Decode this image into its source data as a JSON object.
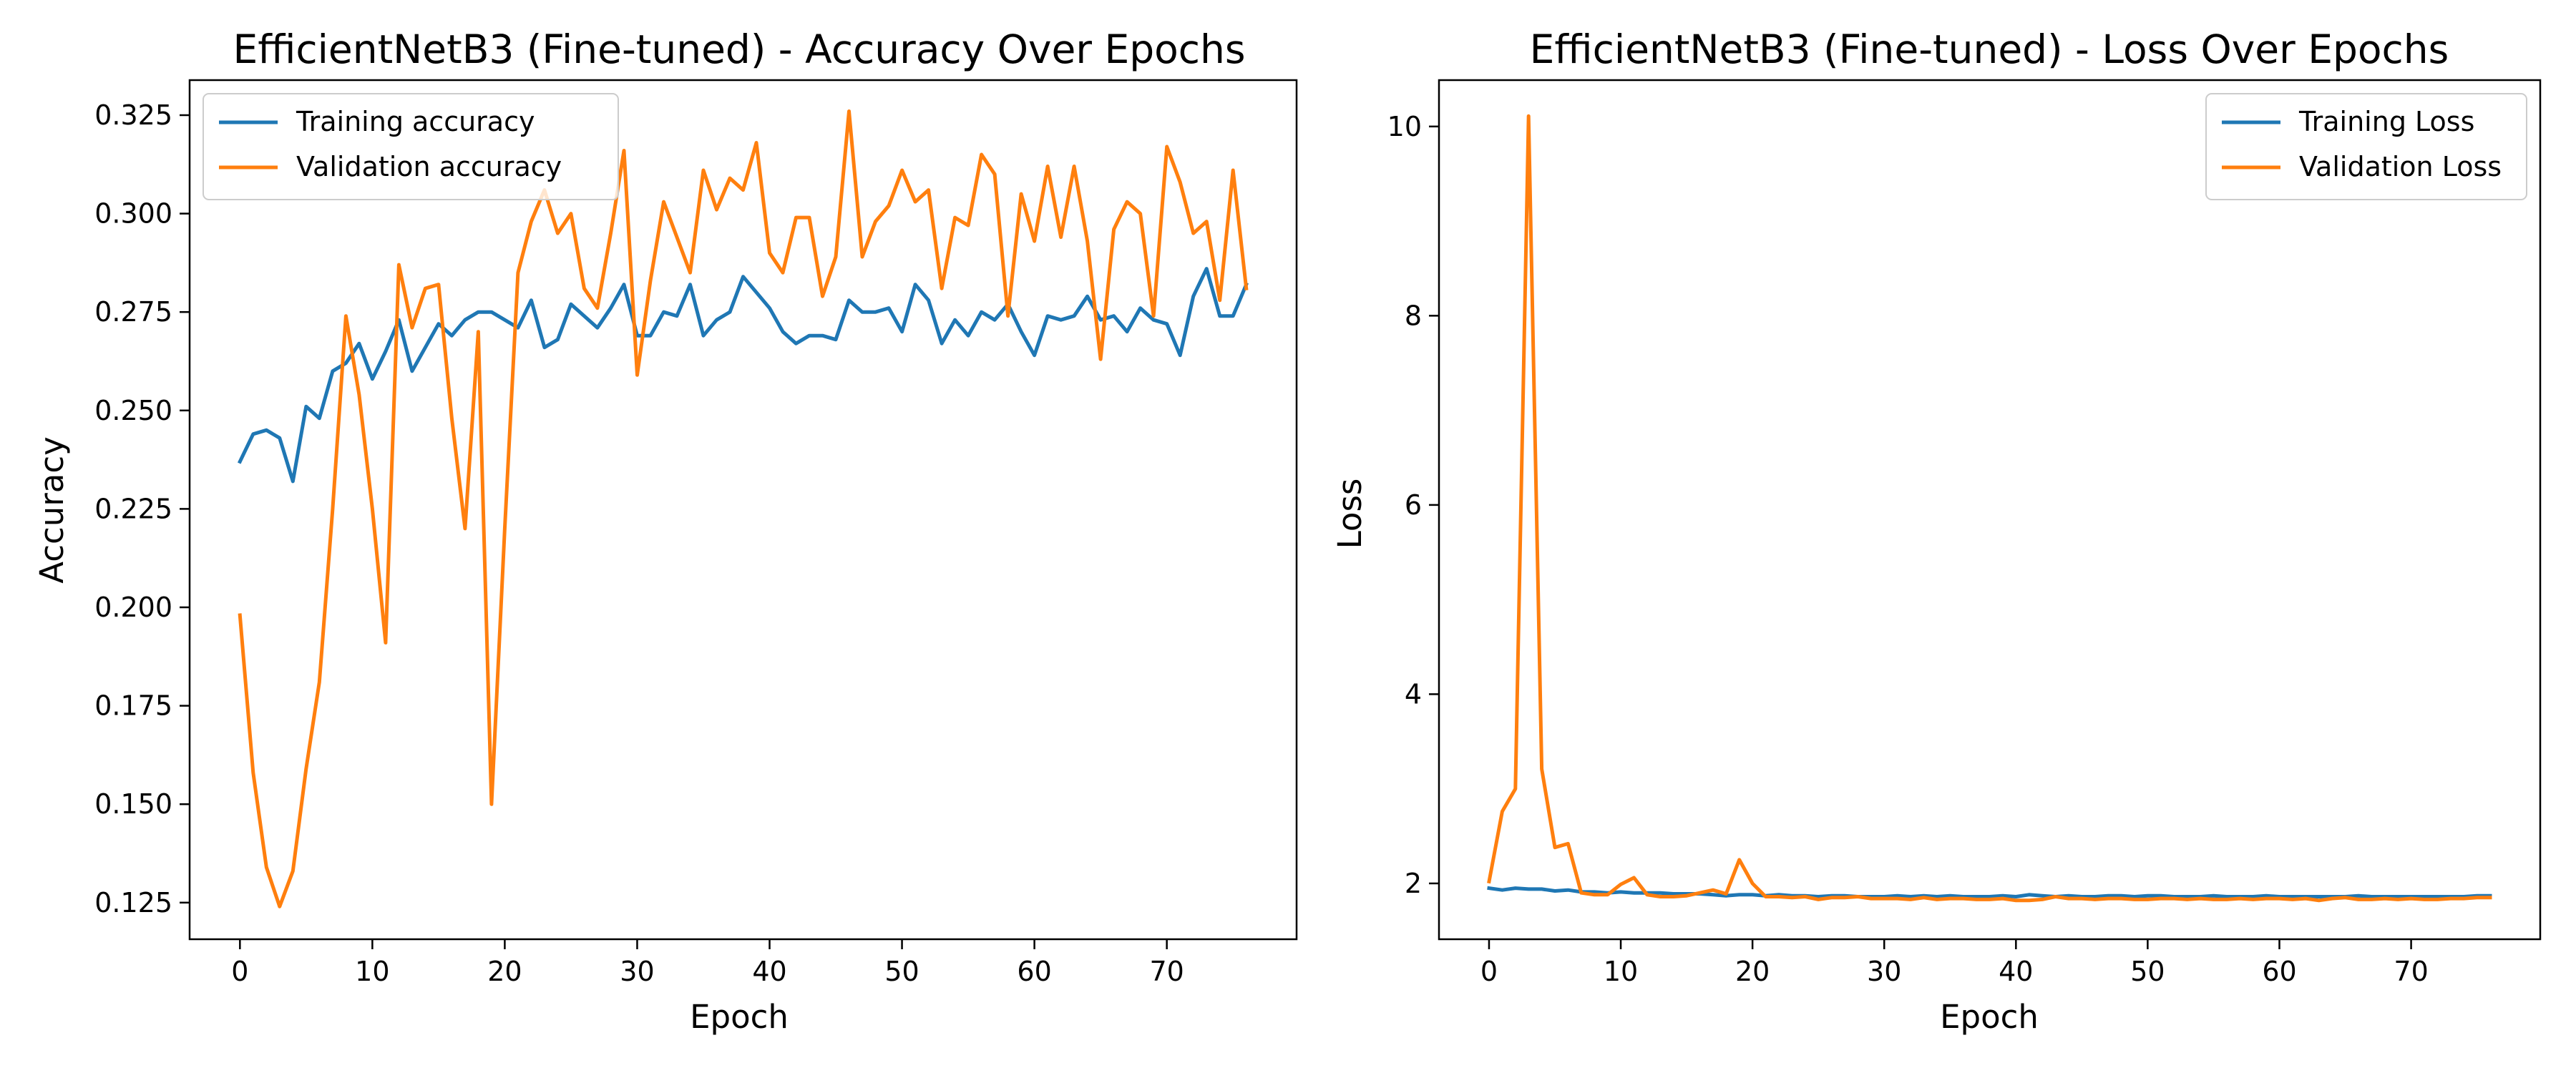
{
  "chart_data": [
    {
      "type": "line",
      "title": "EfficientNetB3 (Fine-tuned) - Accuracy Over Epochs",
      "xlabel": "Epoch",
      "ylabel": "Accuracy",
      "xlim": [
        -3.8,
        79.8
      ],
      "ylim": [
        0.1157,
        0.3339
      ],
      "xticks": [
        0,
        10,
        20,
        30,
        40,
        50,
        60,
        70
      ],
      "yticks": [
        0.125,
        0.15,
        0.175,
        0.2,
        0.225,
        0.25,
        0.275,
        0.3,
        0.325
      ],
      "ytick_labels": [
        "0.125",
        "0.150",
        "0.175",
        "0.200",
        "0.225",
        "0.250",
        "0.275",
        "0.300",
        "0.325"
      ],
      "grid": false,
      "legend": "top-left",
      "series": [
        {
          "name": "Training accuracy",
          "color": "#1f77b4",
          "x": [
            0,
            1,
            2,
            3,
            4,
            5,
            6,
            7,
            8,
            9,
            10,
            11,
            12,
            13,
            14,
            15,
            16,
            17,
            18,
            19,
            20,
            21,
            22,
            23,
            24,
            25,
            26,
            27,
            28,
            29,
            30,
            31,
            32,
            33,
            34,
            35,
            36,
            37,
            38,
            39,
            40,
            41,
            42,
            43,
            44,
            45,
            46,
            47,
            48,
            49,
            50,
            51,
            52,
            53,
            54,
            55,
            56,
            57,
            58,
            59,
            60,
            61,
            62,
            63,
            64,
            65,
            66,
            67,
            68,
            69,
            70,
            71,
            72,
            73,
            74,
            75,
            76
          ],
          "values": [
            0.237,
            0.244,
            0.245,
            0.243,
            0.232,
            0.251,
            0.248,
            0.26,
            0.262,
            0.267,
            0.258,
            0.265,
            0.273,
            0.26,
            0.266,
            0.272,
            0.269,
            0.273,
            0.275,
            0.275,
            0.273,
            0.271,
            0.278,
            0.266,
            0.268,
            0.277,
            0.274,
            0.271,
            0.276,
            0.282,
            0.269,
            0.269,
            0.275,
            0.274,
            0.282,
            0.269,
            0.273,
            0.275,
            0.284,
            0.28,
            0.276,
            0.27,
            0.267,
            0.269,
            0.269,
            0.268,
            0.278,
            0.275,
            0.275,
            0.276,
            0.27,
            0.282,
            0.278,
            0.267,
            0.273,
            0.269,
            0.275,
            0.273,
            0.277,
            0.27,
            0.264,
            0.274,
            0.273,
            0.274,
            0.279,
            0.273,
            0.274,
            0.27,
            0.276,
            0.273,
            0.272,
            0.264,
            0.279,
            0.286,
            0.274,
            0.274,
            0.282
          ]
        },
        {
          "name": "Validation accuracy",
          "color": "#ff7f0e",
          "x": [
            0,
            1,
            2,
            3,
            4,
            5,
            6,
            7,
            8,
            9,
            10,
            11,
            12,
            13,
            14,
            15,
            16,
            17,
            18,
            19,
            20,
            21,
            22,
            23,
            24,
            25,
            26,
            27,
            28,
            29,
            30,
            31,
            32,
            33,
            34,
            35,
            36,
            37,
            38,
            39,
            40,
            41,
            42,
            43,
            44,
            45,
            46,
            47,
            48,
            49,
            50,
            51,
            52,
            53,
            54,
            55,
            56,
            57,
            58,
            59,
            60,
            61,
            62,
            63,
            64,
            65,
            66,
            67,
            68,
            69,
            70,
            71,
            72,
            73,
            74,
            75,
            76
          ],
          "values": [
            0.198,
            0.158,
            0.134,
            0.124,
            0.133,
            0.159,
            0.181,
            0.225,
            0.274,
            0.254,
            0.225,
            0.191,
            0.287,
            0.271,
            0.281,
            0.282,
            0.248,
            0.22,
            0.27,
            0.15,
            0.22,
            0.285,
            0.298,
            0.306,
            0.295,
            0.3,
            0.281,
            0.276,
            0.295,
            0.316,
            0.259,
            0.283,
            0.303,
            0.294,
            0.285,
            0.311,
            0.301,
            0.309,
            0.306,
            0.318,
            0.29,
            0.285,
            0.299,
            0.299,
            0.279,
            0.289,
            0.326,
            0.289,
            0.298,
            0.302,
            0.311,
            0.303,
            0.306,
            0.281,
            0.299,
            0.297,
            0.315,
            0.31,
            0.274,
            0.305,
            0.293,
            0.312,
            0.294,
            0.312,
            0.293,
            0.263,
            0.296,
            0.303,
            0.3,
            0.274,
            0.317,
            0.308,
            0.295,
            0.298,
            0.278,
            0.311,
            0.281
          ]
        }
      ]
    },
    {
      "type": "line",
      "title": "EfficientNetB3 (Fine-tuned) - Loss Over Epochs",
      "xlabel": "Epoch",
      "ylabel": "Loss",
      "xlim": [
        -3.8,
        79.8
      ],
      "ylim": [
        1.41,
        10.49
      ],
      "xticks": [
        0,
        10,
        20,
        30,
        40,
        50,
        60,
        70
      ],
      "yticks": [
        2,
        4,
        6,
        8,
        10
      ],
      "ytick_labels": [
        "2",
        "4",
        "6",
        "8",
        "10"
      ],
      "grid": false,
      "legend": "top-right",
      "series": [
        {
          "name": "Training Loss",
          "color": "#1f77b4",
          "x": [
            0,
            1,
            2,
            3,
            4,
            5,
            6,
            7,
            8,
            9,
            10,
            11,
            12,
            13,
            14,
            15,
            16,
            17,
            18,
            19,
            20,
            21,
            22,
            23,
            24,
            25,
            26,
            27,
            28,
            29,
            30,
            31,
            32,
            33,
            34,
            35,
            36,
            37,
            38,
            39,
            40,
            41,
            42,
            43,
            44,
            45,
            46,
            47,
            48,
            49,
            50,
            51,
            52,
            53,
            54,
            55,
            56,
            57,
            58,
            59,
            60,
            61,
            62,
            63,
            64,
            65,
            66,
            67,
            68,
            69,
            70,
            71,
            72,
            73,
            74,
            75,
            76
          ],
          "values": [
            1.95,
            1.93,
            1.95,
            1.94,
            1.94,
            1.92,
            1.93,
            1.91,
            1.91,
            1.9,
            1.91,
            1.9,
            1.9,
            1.9,
            1.89,
            1.89,
            1.89,
            1.88,
            1.87,
            1.88,
            1.88,
            1.87,
            1.88,
            1.87,
            1.87,
            1.86,
            1.87,
            1.87,
            1.86,
            1.86,
            1.86,
            1.87,
            1.86,
            1.87,
            1.86,
            1.87,
            1.86,
            1.86,
            1.86,
            1.87,
            1.86,
            1.88,
            1.87,
            1.86,
            1.87,
            1.86,
            1.86,
            1.87,
            1.87,
            1.86,
            1.87,
            1.87,
            1.86,
            1.86,
            1.86,
            1.87,
            1.86,
            1.86,
            1.86,
            1.87,
            1.86,
            1.86,
            1.86,
            1.86,
            1.86,
            1.86,
            1.87,
            1.86,
            1.86,
            1.86,
            1.86,
            1.86,
            1.86,
            1.86,
            1.86,
            1.87,
            1.87
          ]
        },
        {
          "name": "Validation Loss",
          "color": "#ff7f0e",
          "x": [
            0,
            1,
            2,
            3,
            4,
            5,
            6,
            7,
            8,
            9,
            10,
            11,
            12,
            13,
            14,
            15,
            16,
            17,
            18,
            19,
            20,
            21,
            22,
            23,
            24,
            25,
            26,
            27,
            28,
            29,
            30,
            31,
            32,
            33,
            34,
            35,
            36,
            37,
            38,
            39,
            40,
            41,
            42,
            43,
            44,
            45,
            46,
            47,
            48,
            49,
            50,
            51,
            52,
            53,
            54,
            55,
            56,
            57,
            58,
            59,
            60,
            61,
            62,
            63,
            64,
            65,
            66,
            67,
            68,
            69,
            70,
            71,
            72,
            73,
            74,
            75,
            76
          ],
          "values": [
            2.02,
            2.76,
            3.0,
            10.11,
            3.21,
            2.38,
            2.42,
            1.9,
            1.88,
            1.88,
            1.99,
            2.06,
            1.88,
            1.86,
            1.86,
            1.87,
            1.9,
            1.93,
            1.89,
            2.25,
            2.0,
            1.86,
            1.86,
            1.85,
            1.86,
            1.83,
            1.85,
            1.85,
            1.86,
            1.84,
            1.84,
            1.84,
            1.83,
            1.85,
            1.83,
            1.84,
            1.84,
            1.83,
            1.83,
            1.84,
            1.82,
            1.82,
            1.83,
            1.86,
            1.84,
            1.84,
            1.83,
            1.84,
            1.84,
            1.83,
            1.83,
            1.84,
            1.84,
            1.83,
            1.84,
            1.83,
            1.83,
            1.84,
            1.83,
            1.84,
            1.84,
            1.83,
            1.84,
            1.82,
            1.84,
            1.85,
            1.83,
            1.83,
            1.84,
            1.83,
            1.84,
            1.83,
            1.83,
            1.84,
            1.84,
            1.85,
            1.85
          ]
        }
      ]
    }
  ]
}
